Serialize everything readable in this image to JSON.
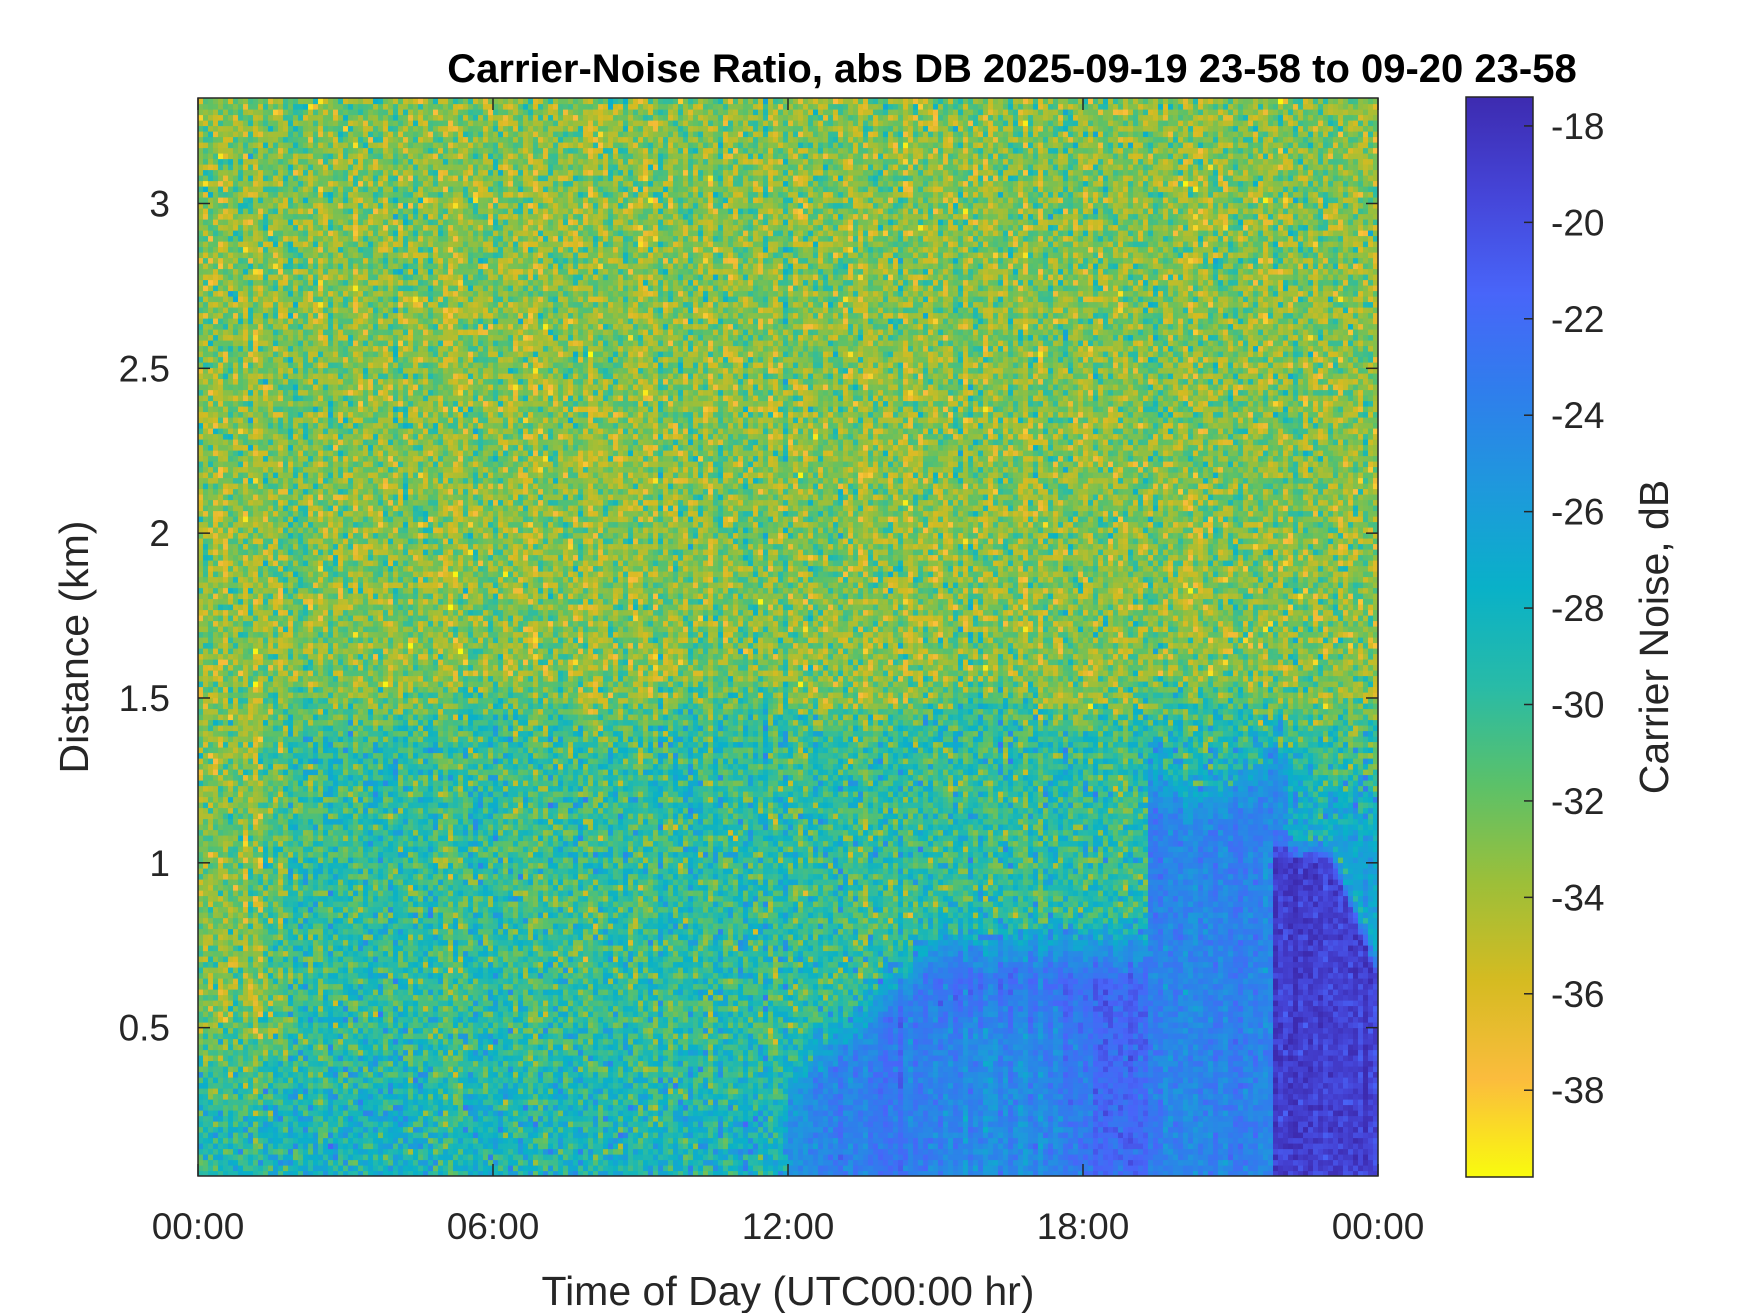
{
  "chart_data": {
    "type": "heatmap",
    "title": "Carrier-Noise Ratio, abs DB 2025-09-19 23-58 to 09-20 23-58",
    "xlabel": "Time of Day (UTC00:00 hr)",
    "ylabel": "Distance (km)",
    "colorbar_label": "Carrier Noise, dB",
    "xlim_hours": [
      0,
      24
    ],
    "ylim_km": [
      0.05,
      3.32
    ],
    "clim_db": [
      -39.8,
      -17.4
    ],
    "x_ticks": [
      {
        "value": 0,
        "label": "00:00"
      },
      {
        "value": 6,
        "label": "06:00"
      },
      {
        "value": 12,
        "label": "12:00"
      },
      {
        "value": 18,
        "label": "18:00"
      },
      {
        "value": 24,
        "label": "00:00"
      }
    ],
    "y_ticks": [
      {
        "value": 0.5,
        "label": "0.5"
      },
      {
        "value": 1.0,
        "label": "1"
      },
      {
        "value": 1.5,
        "label": "1.5"
      },
      {
        "value": 2.0,
        "label": "2"
      },
      {
        "value": 2.5,
        "label": "2.5"
      },
      {
        "value": 3.0,
        "label": "3"
      }
    ],
    "colorbar_ticks": [
      {
        "value": -18,
        "label": "-18"
      },
      {
        "value": -20,
        "label": "-20"
      },
      {
        "value": -22,
        "label": "-22"
      },
      {
        "value": -24,
        "label": "-24"
      },
      {
        "value": -26,
        "label": "-26"
      },
      {
        "value": -28,
        "label": "-28"
      },
      {
        "value": -30,
        "label": "-30"
      },
      {
        "value": -32,
        "label": "-32"
      },
      {
        "value": -34,
        "label": "-34"
      },
      {
        "value": -36,
        "label": "-36"
      },
      {
        "value": -38,
        "label": "-38"
      }
    ],
    "colormap": "parula",
    "colormap_stops": [
      "#f9fb0e",
      "#fbbc3d",
      "#d5bb21",
      "#9cbf39",
      "#5bc169",
      "#28bba7",
      "#09b1c8",
      "#1e99dc",
      "#2f7eec",
      "#4865f9",
      "#4545d8",
      "#3d2bb0"
    ],
    "background_level_db": -33,
    "regions": [
      {
        "description": "low range band 0-06:00",
        "t_start": 0.0,
        "t_end": 6.0,
        "r_start": 0.05,
        "r_end": 0.55,
        "mean_db": -28
      },
      {
        "description": "mid band",
        "t_start": 2.5,
        "t_end": 12.5,
        "r_start": 0.05,
        "r_end": 1.55,
        "mean_db": -30
      },
      {
        "description": "afternoon low cloud base",
        "t_start": 12.0,
        "t_end": 19.3,
        "r_start": 0.05,
        "r_end": 0.85,
        "mean_db": -22
      },
      {
        "description": "evening plume",
        "t_start": 19.3,
        "t_end": 22.2,
        "r_start": 0.05,
        "r_end": 1.45,
        "mean_db": -24
      },
      {
        "description": "late night strong return",
        "t_start": 21.85,
        "t_end": 24.0,
        "r_start": 0.05,
        "r_end": 1.1,
        "mean_db": -19
      }
    ]
  }
}
